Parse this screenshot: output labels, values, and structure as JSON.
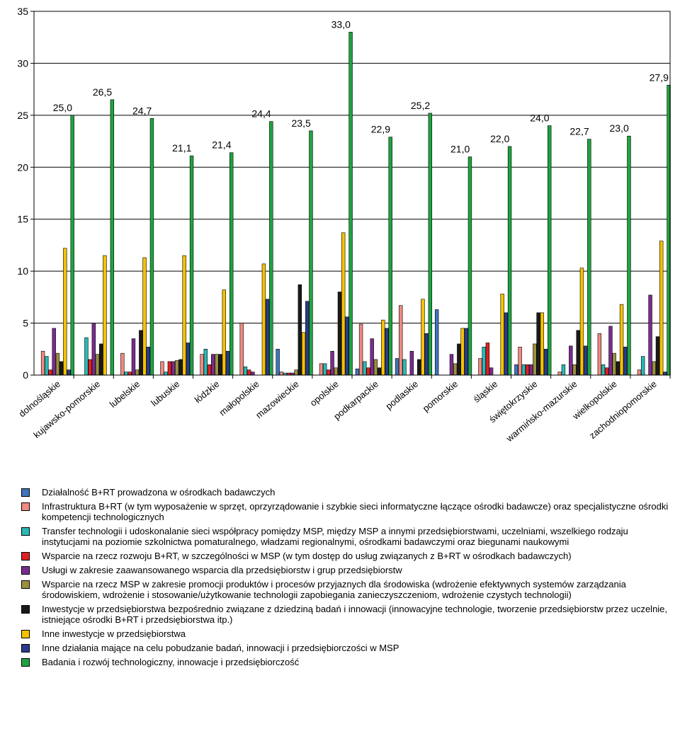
{
  "chart_data": {
    "type": "bar",
    "ylim": [
      0,
      35
    ],
    "yticks": [
      "0",
      "5",
      "10",
      "15",
      "20",
      "25",
      "30",
      "35"
    ],
    "grid": true,
    "legend_position": "bottom",
    "categories": [
      "dolnośląskie",
      "kujawsko-pomorskie",
      "lubelskie",
      "lubuskie",
      "łódzkie",
      "małopolskie",
      "mazowieckie",
      "opolskie",
      "podkarpackie",
      "podlaskie",
      "pomorskie",
      "śląskie",
      "świętokrzyskie",
      "warmińsko-mazurskie",
      "wielkopolskie",
      "zachodniopomorskie"
    ],
    "series": [
      {
        "name": "Działalność B+RT prowadzona w ośrodkach badawczych",
        "color": "#3f74bb",
        "values": [
          0,
          0,
          0,
          0,
          0,
          0,
          2.5,
          0,
          0.6,
          1.6,
          6.3,
          0,
          1.0,
          0,
          0,
          0
        ]
      },
      {
        "name": "Infrastruktura B+RT (w tym wyposażenie w sprzęt, oprzyrządowanie i szybkie sieci informatyczne łączące ośrodki badawcze) oraz specjalistyczne ośrodki kompetencji technologicznych",
        "color": "#ef8a80",
        "values": [
          2.3,
          0,
          2.1,
          1.3,
          2.0,
          5.0,
          0.3,
          1.1,
          4.9,
          6.7,
          0,
          1.6,
          2.7,
          0.3,
          4.0,
          0.5
        ]
      },
      {
        "name": "Transfer technologii i udoskonalanie sieci współpracy pomiędzy MSP, między MSP a innymi przedsiębiorstwami, uczelniami, wszelkiego rodzaju instytucjami na poziomie szkolnictwa pomaturalnego, władzami regionalnymi, ośrodkami badawczymi oraz biegunami naukowymi",
        "color": "#2ab9b5",
        "values": [
          1.8,
          3.6,
          0.3,
          0.3,
          2.5,
          0.8,
          0.2,
          1.1,
          1.3,
          1.5,
          0,
          2.7,
          1.0,
          1.0,
          1.0,
          1.8
        ]
      },
      {
        "name": "Wsparcie na rzecz rozwoju B+RT, w szczególności w MSP (w tym dostęp do usług związanych z B+RT w ośrodkach badawczych)",
        "color": "#e02020",
        "values": [
          0.5,
          1.5,
          0.3,
          1.3,
          1.0,
          0.5,
          0.2,
          0.5,
          0.7,
          0,
          0,
          3.1,
          1.0,
          0,
          0.7,
          0
        ]
      },
      {
        "name": "Usługi w zakresie zaawansowanego wsparcia dla przedsiębiorstw i grup przedsiębiorstw",
        "color": "#7a2c8e",
        "values": [
          4.5,
          5.0,
          3.5,
          1.3,
          2.0,
          0.3,
          0.2,
          2.3,
          3.5,
          2.3,
          2.0,
          0.7,
          1.0,
          2.8,
          4.7,
          7.7
        ]
      },
      {
        "name": "Wsparcie na rzecz MSP w zakresie promocji produktów i procesów przyjaznych dla środowiska (wdrożenie efektywnych systemów zarządzania środowiskiem, wdrożenie i stosowanie/użytkowanie technologii zapobiegania zanieczyszczeniom, wdrożenie czystych technologii)",
        "color": "#9b9040",
        "values": [
          2.1,
          2.0,
          0.5,
          1.4,
          2.0,
          0,
          0.5,
          0.7,
          1.5,
          0,
          1.1,
          0,
          3.0,
          1.0,
          2.1,
          1.3
        ]
      },
      {
        "name": "Inwestycje w przedsiębiorstwa bezpośrednio związane z dziedziną badań i innowacji (innowacyjne technologie, tworzenie przedsiębiorstw przez uczelnie, istniejące ośrodki B+RT i przedsiębiorstwa itp.)",
        "color": "#1a1a1a",
        "values": [
          1.3,
          3.0,
          4.3,
          1.5,
          2.0,
          0,
          8.7,
          8.0,
          0.7,
          1.5,
          3.0,
          0,
          6.0,
          4.3,
          1.3,
          3.7
        ]
      },
      {
        "name": "Inne inwestycje w przedsiębiorstwa",
        "color": "#f5c200",
        "values": [
          12.2,
          11.5,
          11.3,
          11.5,
          8.2,
          10.7,
          4.1,
          13.7,
          5.3,
          7.3,
          4.5,
          7.8,
          6.0,
          10.3,
          6.8,
          12.9
        ]
      },
      {
        "name": "Inne działania mające na celu pobudzanie badań, innowacji i przedsiębiorczości w MSP",
        "color": "#2a3a8c",
        "values": [
          0.5,
          0,
          2.7,
          3.1,
          2.3,
          7.3,
          7.1,
          5.6,
          4.5,
          4.0,
          4.5,
          6.0,
          2.5,
          2.8,
          2.7,
          0.3
        ]
      },
      {
        "name": "Badania i rozwój technologiczny, innowacje i przedsiębiorczość",
        "color": "#1ea340",
        "values": [
          25.0,
          26.5,
          24.7,
          21.1,
          21.4,
          24.4,
          23.5,
          33.0,
          22.9,
          25.2,
          21.0,
          22.0,
          24.0,
          22.7,
          23.0,
          27.9
        ]
      }
    ],
    "data_labels": [
      "25,0",
      "26,5",
      "24,7",
      "21,1",
      "21,4",
      "24,4",
      "23,5",
      "33,0",
      "22,9",
      "25,2",
      "21,0",
      "22,0",
      "24,0",
      "22,7",
      "23,0",
      "27,9"
    ]
  }
}
